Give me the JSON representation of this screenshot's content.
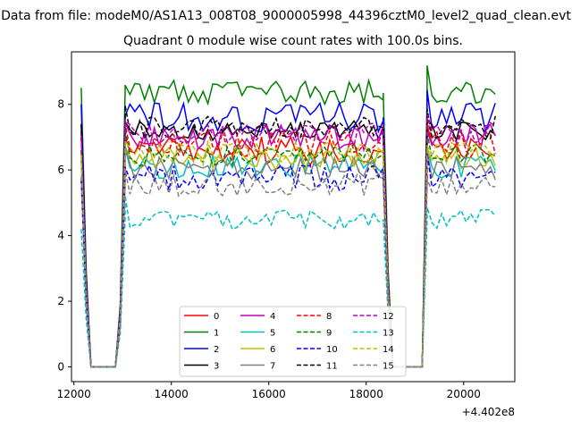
{
  "suptitle": "Data from file: modeM0/AS1A13_008T08_9000005998_44396cztM0_level2_quad_clean.evt",
  "chart_data": {
    "type": "line",
    "title": "Quadrant 0 module wise count rates with 100.0s bins.",
    "xlabel": "",
    "ylabel": "",
    "x_offset_label": "+4.402e8",
    "xlim": [
      11950,
      21050
    ],
    "ylim": [
      -0.45,
      9.6
    ],
    "x_ticks": [
      12000,
      14000,
      16000,
      18000,
      20000
    ],
    "y_ticks": [
      0,
      2,
      4,
      6,
      8
    ],
    "grid": false,
    "legend": {
      "placement": "lower-center",
      "columns": 4
    },
    "segments": [
      {
        "x_start": 12150,
        "x_end": 12350,
        "kind": "ramp_down"
      },
      {
        "x_start": 12350,
        "x_end": 12850,
        "kind": "zero"
      },
      {
        "x_start": 12850,
        "x_end": 13050,
        "kind": "ramp_up"
      },
      {
        "x_start": 13050,
        "x_end": 18350,
        "kind": "data"
      },
      {
        "x_start": 18350,
        "x_end": 18550,
        "kind": "ramp_down"
      },
      {
        "x_start": 18550,
        "x_end": 19150,
        "kind": "zero"
      },
      {
        "x_start": 19150,
        "x_end": 19250,
        "kind": "ramp_up"
      },
      {
        "x_start": 19250,
        "x_end": 20650,
        "kind": "data"
      }
    ],
    "bin_width": 100,
    "series": [
      {
        "name": "0",
        "color": "#ff0000",
        "dash": "solid",
        "mean": 6.6,
        "spread": 0.45,
        "start": 7.2
      },
      {
        "name": "1",
        "color": "#008000",
        "dash": "solid",
        "mean": 8.35,
        "spread": 0.4,
        "start": 8.5
      },
      {
        "name": "2",
        "color": "#0000ff",
        "dash": "solid",
        "mean": 7.6,
        "spread": 0.45,
        "start": 8.0
      },
      {
        "name": "3",
        "color": "#000000",
        "dash": "solid",
        "mean": 7.2,
        "spread": 0.3,
        "start": 7.4
      },
      {
        "name": "4",
        "color": "#bf00bf",
        "dash": "solid",
        "mean": 7.0,
        "spread": 0.4,
        "start": 7.1
      },
      {
        "name": "5",
        "color": "#00bfbf",
        "dash": "solid",
        "mean": 6.1,
        "spread": 0.35,
        "start": 6.6
      },
      {
        "name": "6",
        "color": "#bfbf00",
        "dash": "solid",
        "mean": 6.35,
        "spread": 0.35,
        "start": 6.5
      },
      {
        "name": "7",
        "color": "#808080",
        "dash": "solid",
        "mean": 6.05,
        "spread": 0.35,
        "start": 6.3
      },
      {
        "name": "8",
        "color": "#ff0000",
        "dash": "dashed",
        "mean": 6.8,
        "spread": 0.4,
        "start": 7.0
      },
      {
        "name": "9",
        "color": "#008000",
        "dash": "dashed",
        "mean": 6.45,
        "spread": 0.35,
        "start": 6.6
      },
      {
        "name": "10",
        "color": "#0000ff",
        "dash": "dashed",
        "mean": 5.75,
        "spread": 0.4,
        "start": 5.7
      },
      {
        "name": "11",
        "color": "#000000",
        "dash": "dashed",
        "mean": 7.3,
        "spread": 0.35,
        "start": 7.4
      },
      {
        "name": "12",
        "color": "#bf00bf",
        "dash": "dashed",
        "mean": 7.1,
        "spread": 0.35,
        "start": 7.0
      },
      {
        "name": "13",
        "color": "#00bfbf",
        "dash": "dashed",
        "mean": 4.5,
        "spread": 0.3,
        "start": 4.2
      },
      {
        "name": "14",
        "color": "#bfbf00",
        "dash": "dashed",
        "mean": 6.5,
        "spread": 0.35,
        "start": 6.4
      },
      {
        "name": "15",
        "color": "#808080",
        "dash": "dashed",
        "mean": 5.6,
        "spread": 0.4,
        "start": 5.8
      }
    ]
  }
}
